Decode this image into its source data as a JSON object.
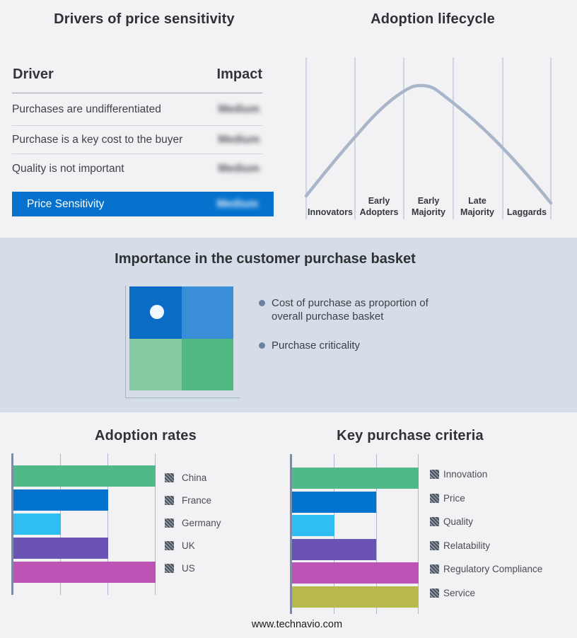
{
  "drivers_panel": {
    "title": "Drivers of price sensitivity",
    "col_driver": "Driver",
    "col_impact": "Impact",
    "rows": [
      {
        "driver": "Purchases are undifferentiated",
        "impact": "Medium",
        "impact_blurred": true
      },
      {
        "driver": "Purchase is a key cost to the buyer",
        "impact": "Medium",
        "impact_blurred": true
      },
      {
        "driver": "Quality is not important",
        "impact": "Medium",
        "impact_blurred": true
      }
    ],
    "highlight": {
      "driver": "Price Sensitivity",
      "impact": "Medium",
      "impact_blurred": true
    },
    "highlight_color": "#0672cd"
  },
  "lifecycle_panel": {
    "title": "Adoption lifecycle",
    "curve_color": "#a9b6c9",
    "stages": [
      {
        "l1": "Innovators",
        "l2": ""
      },
      {
        "l1": "Early",
        "l2": "Adopters"
      },
      {
        "l1": "Early",
        "l2": "Majority"
      },
      {
        "l1": "Late",
        "l2": "Majority"
      },
      {
        "l1": "Laggards",
        "l2": ""
      }
    ]
  },
  "basket_panel": {
    "title": "Importance in the customer purchase basket",
    "bullet1": "Cost of purchase as proportion of overall purchase basket",
    "bullet2": "Purchase criticality",
    "quadrant": {
      "tl": "#0b6cc5",
      "tr": "#3a8ed8",
      "bl": "#85c9a1",
      "br": "#4fb981"
    }
  },
  "adoption_rates": {
    "title": "Adoption rates",
    "max": 3,
    "items": [
      {
        "label": "China",
        "value": 3,
        "color": "#4fb98a"
      },
      {
        "label": "France",
        "value": 2,
        "color": "#0273ce"
      },
      {
        "label": "Germany",
        "value": 1,
        "color": "#2fbef2"
      },
      {
        "label": "UK",
        "value": 2,
        "color": "#6b52b5"
      },
      {
        "label": "US",
        "value": 3,
        "color": "#bd53b4"
      }
    ]
  },
  "key_criteria": {
    "title": "Key purchase criteria",
    "max": 3,
    "items": [
      {
        "label": "Innovation",
        "value": 3,
        "color": "#4fb98a"
      },
      {
        "label": "Price",
        "value": 2,
        "color": "#0273ce"
      },
      {
        "label": "Quality",
        "value": 1,
        "color": "#2fbef2"
      },
      {
        "label": "Relatability",
        "value": 2,
        "color": "#6b52b5"
      },
      {
        "label": "Regulatory Compliance",
        "value": 3,
        "color": "#bd53b4"
      },
      {
        "label": "Service",
        "value": 3,
        "color": "#b8b94b"
      }
    ]
  },
  "footer": {
    "url": "www.technavio.com"
  },
  "chart_data": [
    {
      "type": "table",
      "title": "Drivers of price sensitivity",
      "columns": [
        "Driver",
        "Impact"
      ],
      "rows": [
        [
          "Purchases are undifferentiated",
          "Medium"
        ],
        [
          "Purchase is a key cost to the buyer",
          "Medium"
        ],
        [
          "Quality is not important",
          "Medium"
        ],
        [
          "Price Sensitivity",
          "Medium"
        ]
      ],
      "note": "Impact values are shown blurred/redacted; final row highlighted blue"
    },
    {
      "type": "line",
      "title": "Adoption lifecycle",
      "categories": [
        "Innovators",
        "Early Adopters",
        "Early Majority",
        "Late Majority",
        "Laggards"
      ],
      "x": [
        0,
        1,
        2,
        2.4,
        3,
        4,
        5
      ],
      "values": [
        0.05,
        0.42,
        0.78,
        0.84,
        0.72,
        0.43,
        0.04
      ],
      "ylim": [
        0,
        1
      ],
      "grid": "vertical category separators only",
      "description": "Unlabeled bell curve peaking at Early Majority"
    },
    {
      "type": "bar",
      "title": "Adoption rates",
      "orientation": "horizontal",
      "categories": [
        "China",
        "France",
        "Germany",
        "UK",
        "US"
      ],
      "values": [
        3,
        2,
        1,
        2,
        3
      ],
      "xlim": [
        0,
        3
      ],
      "legend_position": "right",
      "note": "axis unlabeled; values expressed in gridline units"
    },
    {
      "type": "bar",
      "title": "Key purchase criteria",
      "orientation": "horizontal",
      "categories": [
        "Innovation",
        "Price",
        "Quality",
        "Relatability",
        "Regulatory Compliance",
        "Service"
      ],
      "values": [
        3,
        2,
        1,
        2,
        3,
        3
      ],
      "xlim": [
        0,
        3
      ],
      "legend_position": "right",
      "note": "axis unlabeled; values expressed in gridline units"
    }
  ]
}
